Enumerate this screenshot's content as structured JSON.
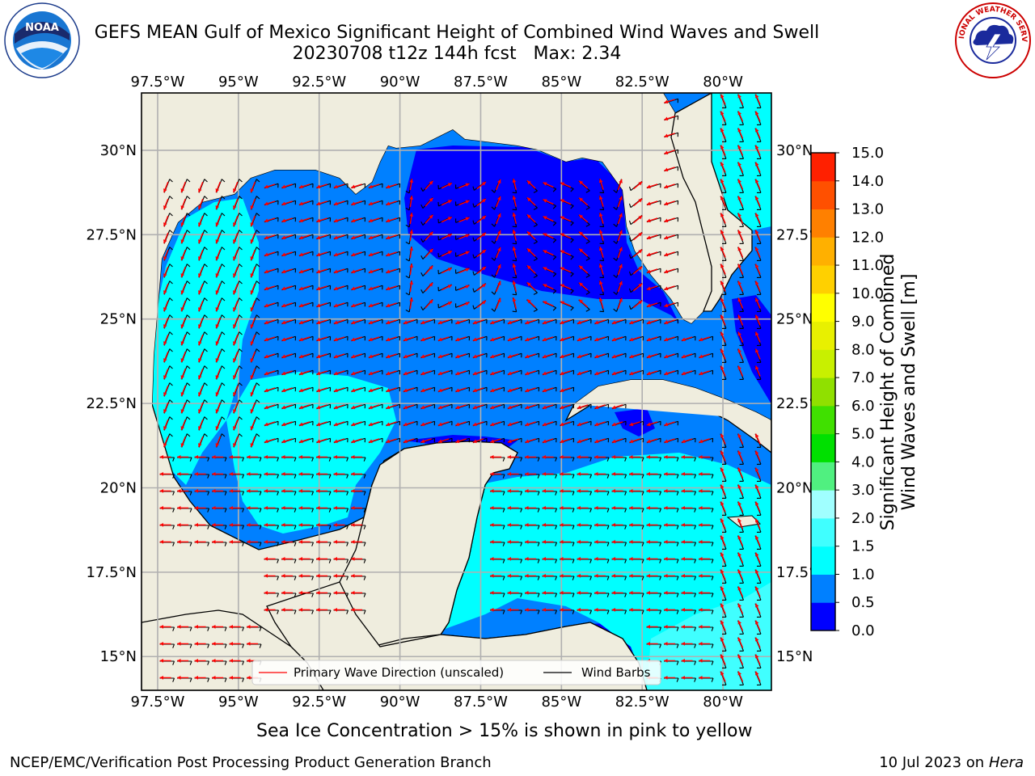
{
  "title": {
    "line1": "GEFS MEAN Gulf of Mexico Significant Height of Combined Wind Waves and Swell",
    "line2": "20230708 t12z 144h fcst   Max: 2.34"
  },
  "logos": {
    "left": {
      "label": "NOAA",
      "icon": "noaa-logo"
    },
    "right": {
      "label": "NATIONAL WEATHER SERVICE",
      "icon": "nws-logo"
    }
  },
  "map": {
    "lon_range": [
      -98.0,
      -78.5
    ],
    "lat_range": [
      14.0,
      31.7
    ],
    "lon_ticks": [
      "97.5°W",
      "95°W",
      "92.5°W",
      "90°W",
      "87.5°W",
      "85°W",
      "82.5°W",
      "80°W"
    ],
    "lon_values": [
      -97.5,
      -95,
      -92.5,
      -90,
      -87.5,
      -85,
      -82.5,
      -80
    ],
    "lat_ticks": [
      "30°N",
      "27.5°N",
      "25°N",
      "22.5°N",
      "20°N",
      "17.5°N",
      "15°N"
    ],
    "lat_values": [
      30,
      27.5,
      25,
      22.5,
      20,
      17.5,
      15
    ],
    "colors": {
      "land": "#efedde",
      "ocean_default": "#0080ff",
      "coast": "#000000",
      "grid": "#b0b0b0",
      "arrow": "#ff0000",
      "barb": "#000000"
    }
  },
  "legend": {
    "wave_label": "Primary Wave Direction (unscaled)",
    "barb_label": "Wind Barbs"
  },
  "colorbar": {
    "ticks": [
      "0.0",
      "0.5",
      "1.0",
      "1.5",
      "2.0",
      "3.0",
      "4.0",
      "5.0",
      "6.0",
      "7.0",
      "8.0",
      "9.0",
      "10.0",
      "11.0",
      "12.0",
      "13.0",
      "14.0",
      "15.0"
    ],
    "colors": [
      "#0000ff",
      "#0080ff",
      "#00ffff",
      "#40ffff",
      "#a0ffff",
      "#50f080",
      "#00e000",
      "#40e000",
      "#90e000",
      "#c8f000",
      "#e8f000",
      "#ffff00",
      "#ffd000",
      "#ffb000",
      "#ff8000",
      "#ff5000",
      "#ff2000",
      "#ff0000"
    ],
    "label_line1": "Significant Height of Combined",
    "label_line2": "Wind Waves and Swell [m]"
  },
  "caption": "Sea Ice Concentration > 15% is shown in pink to yellow",
  "footer": {
    "left": "NCEP/EMC/Verification Post Processing Product Generation Branch",
    "right_date": "10 Jul 2023 on ",
    "right_machine": "Hera"
  }
}
